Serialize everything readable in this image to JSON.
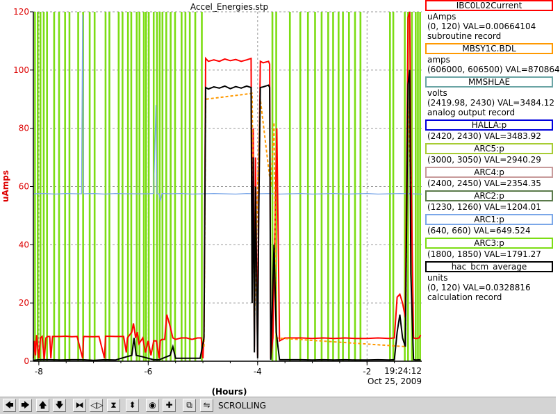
{
  "chart_data": {
    "type": "line",
    "title": "Accel_Energies.stp",
    "xlabel": "(Hours)",
    "ylabel": "uAmps",
    "xlim": [
      -8.1,
      -1.0
    ],
    "ylim": [
      0,
      120
    ],
    "x_ticks": [
      -8,
      -6,
      -4,
      -2
    ],
    "x_tick_labels": [
      "-8",
      "-6",
      "-4",
      "-2"
    ],
    "y_ticks": [
      0,
      20,
      40,
      60,
      80,
      100,
      120
    ],
    "y_tick_labels": [
      "0",
      "20",
      "40",
      "60",
      "80",
      "100",
      "120"
    ],
    "time_label": "19:24:12",
    "date_label": "Oct 25, 2009",
    "grid": true,
    "legend_position": "right",
    "series": [
      {
        "name": "IBC0L02Current",
        "color": "#ff0000",
        "points": [
          [
            -8.1,
            1
          ],
          [
            -8.08,
            7
          ],
          [
            -8.06,
            2
          ],
          [
            -8.04,
            9
          ],
          [
            -8.0,
            1
          ],
          [
            -7.97,
            8
          ],
          [
            -7.94,
            8.5
          ],
          [
            -7.9,
            0.5
          ],
          [
            -7.87,
            8
          ],
          [
            -7.84,
            8.5
          ],
          [
            -7.8,
            8.5
          ],
          [
            -7.78,
            1
          ],
          [
            -7.75,
            8.5
          ],
          [
            -7.6,
            8.5
          ],
          [
            -7.5,
            8.6
          ],
          [
            -7.4,
            8.4
          ],
          [
            -7.3,
            8.5
          ],
          [
            -7.2,
            1
          ],
          [
            -7.18,
            8.5
          ],
          [
            -7.0,
            8.4
          ],
          [
            -6.9,
            8.5
          ],
          [
            -6.8,
            1
          ],
          [
            -6.78,
            8.6
          ],
          [
            -6.6,
            8.5
          ],
          [
            -6.45,
            8.5
          ],
          [
            -6.4,
            3
          ],
          [
            -6.38,
            8
          ],
          [
            -6.3,
            10
          ],
          [
            -6.27,
            13
          ],
          [
            -6.23,
            8
          ],
          [
            -6.2,
            10
          ],
          [
            -6.17,
            6
          ],
          [
            -6.1,
            8
          ],
          [
            -6.05,
            3
          ],
          [
            -6.0,
            7
          ],
          [
            -5.95,
            2
          ],
          [
            -5.9,
            7
          ],
          [
            -5.85,
            7
          ],
          [
            -5.8,
            1
          ],
          [
            -5.78,
            7
          ],
          [
            -5.75,
            7.5
          ],
          [
            -5.7,
            7.5
          ],
          [
            -5.66,
            16
          ],
          [
            -5.6,
            12
          ],
          [
            -5.55,
            8
          ],
          [
            -5.5,
            7.5
          ],
          [
            -5.4,
            8
          ],
          [
            -5.3,
            8
          ],
          [
            -5.2,
            7.5
          ],
          [
            -5.1,
            8
          ],
          [
            -5.03,
            8
          ],
          [
            -5.0,
            1
          ],
          [
            -4.98,
            10
          ],
          [
            -4.95,
            104
          ],
          [
            -4.9,
            103
          ],
          [
            -4.8,
            103.5
          ],
          [
            -4.7,
            103
          ],
          [
            -4.6,
            103.8
          ],
          [
            -4.5,
            103.2
          ],
          [
            -4.4,
            103.6
          ],
          [
            -4.3,
            103
          ],
          [
            -4.2,
            103.5
          ],
          [
            -4.12,
            104
          ],
          [
            -4.1,
            30
          ],
          [
            -4.08,
            80
          ],
          [
            -4.06,
            5
          ],
          [
            -4.04,
            70
          ],
          [
            -4.0,
            2
          ],
          [
            -3.98,
            60
          ],
          [
            -3.95,
            103
          ],
          [
            -3.9,
            102.5
          ],
          [
            -3.8,
            103
          ],
          [
            -3.78,
            102
          ],
          [
            -3.76,
            1
          ],
          [
            -3.72,
            8
          ],
          [
            -3.65,
            80
          ],
          [
            -3.6,
            7
          ],
          [
            -3.5,
            8
          ],
          [
            -3.4,
            8
          ],
          [
            -3.2,
            8
          ],
          [
            -3.0,
            7.8
          ],
          [
            -2.8,
            8
          ],
          [
            -2.6,
            7.8
          ],
          [
            -2.4,
            8
          ],
          [
            -2.2,
            7.8
          ],
          [
            -2.0,
            7.8
          ],
          [
            -1.8,
            8
          ],
          [
            -1.6,
            7.8
          ],
          [
            -1.5,
            8
          ],
          [
            -1.45,
            22
          ],
          [
            -1.4,
            23
          ],
          [
            -1.35,
            20
          ],
          [
            -1.3,
            15
          ],
          [
            -1.25,
            118
          ],
          [
            -1.22,
            120
          ],
          [
            -1.2,
            70
          ],
          [
            -1.15,
            8
          ],
          [
            -1.1,
            7.8
          ],
          [
            -1.05,
            8
          ],
          [
            -1.02,
            9
          ]
        ]
      },
      {
        "name": "hac_bcm_average",
        "color": "#000000",
        "points": [
          [
            -8.1,
            0.3
          ],
          [
            -8.0,
            0.5
          ],
          [
            -7.8,
            0.5
          ],
          [
            -7.6,
            0.4
          ],
          [
            -7.4,
            0.5
          ],
          [
            -7.2,
            0.5
          ],
          [
            -7.0,
            0.3
          ],
          [
            -6.8,
            0.5
          ],
          [
            -6.6,
            0.4
          ],
          [
            -6.4,
            1.5
          ],
          [
            -6.3,
            2
          ],
          [
            -6.26,
            8
          ],
          [
            -6.22,
            2
          ],
          [
            -6.1,
            1.5
          ],
          [
            -6.0,
            1
          ],
          [
            -5.9,
            0.5
          ],
          [
            -5.8,
            0.5
          ],
          [
            -5.6,
            2
          ],
          [
            -5.55,
            5
          ],
          [
            -5.5,
            1
          ],
          [
            -5.4,
            1
          ],
          [
            -5.2,
            1
          ],
          [
            -5.05,
            1
          ],
          [
            -4.98,
            8
          ],
          [
            -4.95,
            94
          ],
          [
            -4.9,
            93.5
          ],
          [
            -4.8,
            94.2
          ],
          [
            -4.7,
            93.8
          ],
          [
            -4.6,
            94.5
          ],
          [
            -4.5,
            93.6
          ],
          [
            -4.4,
            94.3
          ],
          [
            -4.3,
            93.8
          ],
          [
            -4.2,
            94.5
          ],
          [
            -4.12,
            94
          ],
          [
            -4.1,
            20
          ],
          [
            -4.08,
            70
          ],
          [
            -4.06,
            3
          ],
          [
            -4.04,
            60
          ],
          [
            -4.0,
            1
          ],
          [
            -3.98,
            50
          ],
          [
            -3.95,
            94
          ],
          [
            -3.9,
            94.2
          ],
          [
            -3.8,
            94.8
          ],
          [
            -3.78,
            94
          ],
          [
            -3.76,
            0.5
          ],
          [
            -3.7,
            40
          ],
          [
            -3.66,
            10
          ],
          [
            -3.6,
            0.5
          ],
          [
            -3.4,
            0.5
          ],
          [
            -3.2,
            0.5
          ],
          [
            -3.0,
            0.4
          ],
          [
            -2.8,
            0.5
          ],
          [
            -2.6,
            0.4
          ],
          [
            -2.4,
            0.5
          ],
          [
            -2.2,
            0.4
          ],
          [
            -2.0,
            0.4
          ],
          [
            -1.8,
            0.5
          ],
          [
            -1.6,
            0.4
          ],
          [
            -1.5,
            0.5
          ],
          [
            -1.45,
            10
          ],
          [
            -1.4,
            16
          ],
          [
            -1.35,
            8
          ],
          [
            -1.3,
            5
          ],
          [
            -1.25,
            95
          ],
          [
            -1.22,
            100
          ],
          [
            -1.2,
            30
          ],
          [
            -1.15,
            0.5
          ],
          [
            -1.1,
            0.4
          ],
          [
            -1.05,
            0.5
          ],
          [
            -1.02,
            0.4
          ]
        ]
      },
      {
        "name": "MBSY1C.BDL",
        "color": "#ff9900",
        "points": [
          [
            -4.98,
            5
          ],
          [
            -4.95,
            90
          ],
          [
            -4.1,
            92
          ],
          [
            -4.06,
            10
          ],
          [
            -4.0,
            60
          ],
          [
            -3.95,
            90
          ],
          [
            -3.76,
            60
          ],
          [
            -3.7,
            82
          ],
          [
            -3.66,
            8
          ],
          [
            -1.3,
            5
          ],
          [
            -1.25,
            90
          ],
          [
            -1.2,
            60
          ]
        ]
      },
      {
        "name": "MMSHLAE",
        "color": "#7ba7e8",
        "points": [
          [
            -8.1,
            57.5
          ],
          [
            -7.9,
            57.6
          ],
          [
            -7.7,
            57.4
          ],
          [
            -7.5,
            57.6
          ],
          [
            -7.3,
            57.5
          ],
          [
            -7.22,
            57.5
          ],
          [
            -7.2,
            119
          ],
          [
            -7.18,
            57.5
          ],
          [
            -7.0,
            57.6
          ],
          [
            -6.8,
            57.4
          ],
          [
            -6.6,
            57.6
          ],
          [
            -6.4,
            57.5
          ],
          [
            -6.2,
            57.5
          ],
          [
            -6.0,
            57.5
          ],
          [
            -5.9,
            57.6
          ],
          [
            -5.86,
            88
          ],
          [
            -5.84,
            57.5
          ],
          [
            -5.8,
            57.5
          ],
          [
            -5.78,
            55
          ],
          [
            -5.75,
            57.6
          ],
          [
            -5.6,
            57.5
          ],
          [
            -5.4,
            57.6
          ],
          [
            -5.2,
            57.4
          ],
          [
            -5.0,
            57.5
          ],
          [
            -4.8,
            57.6
          ],
          [
            -4.6,
            57.5
          ],
          [
            -4.4,
            57.4
          ],
          [
            -4.2,
            57.6
          ],
          [
            -4.0,
            57.5
          ],
          [
            -3.8,
            57.6
          ],
          [
            -3.6,
            57.4
          ],
          [
            -3.4,
            57.5
          ],
          [
            -3.2,
            57.6
          ],
          [
            -3.0,
            57.4
          ],
          [
            -2.8,
            57.5
          ],
          [
            -2.6,
            57.6
          ],
          [
            -2.4,
            57.4
          ],
          [
            -2.2,
            57.5
          ],
          [
            -2.0,
            57.6
          ],
          [
            -1.8,
            57.4
          ],
          [
            -1.6,
            57.5
          ],
          [
            -1.4,
            57.6
          ],
          [
            -1.2,
            57.5
          ],
          [
            -1.0,
            57.4
          ]
        ]
      },
      {
        "name": "ARC5:p",
        "color": "#7cdd14",
        "spikes": [
          -8.07,
          -8.02,
          -7.97,
          -7.91,
          -7.85,
          -7.72,
          -7.63,
          -7.52,
          -7.44,
          -7.28,
          -7.19,
          -7.07,
          -6.98,
          -6.78,
          -6.71,
          -6.54,
          -6.47,
          -6.37,
          -6.31,
          -6.21,
          -6.16,
          -6.08,
          -6.04,
          -5.99,
          -5.9,
          -5.84,
          -5.79,
          -5.74,
          -5.67,
          -5.59,
          -5.51,
          -5.39,
          -5.32,
          -5.24,
          -5.14,
          -5.02,
          -3.73,
          -3.66,
          -3.41,
          -3.22,
          -3.08,
          -2.95,
          -2.83,
          -2.71,
          -2.62,
          -2.52,
          -2.44,
          -2.33,
          -2.22,
          -2.12,
          -1.58,
          -1.52,
          -1.31,
          -1.25,
          -1.18,
          -1.11,
          -1.07,
          -1.03
        ]
      }
    ]
  },
  "legend": [
    {
      "box": "IBC0L02Current",
      "color": "#ff0000",
      "lines": [
        "uAmps",
        "(0, 120) VAL=0.00664104",
        "subroutine record"
      ]
    },
    {
      "box": "MBSY1C.BDL",
      "color": "#ff9900",
      "lines": [
        "amps",
        "(606000, 606500) VAL=870864"
      ]
    },
    {
      "box": "MMSHLAE",
      "color": "#6aa4a4",
      "lines": [
        "volts",
        "(2419.98, 2430) VAL=3484.12",
        "analog output record"
      ]
    },
    {
      "box": "HALLA:p",
      "color": "#0000dd",
      "lines": [
        "(2420, 2430) VAL=3483.92"
      ]
    },
    {
      "box": "ARC5:p",
      "color": "#a7cc33",
      "lines": [
        "(3000, 3050) VAL=2940.29"
      ]
    },
    {
      "box": "ARC4:p",
      "color": "#c79a9a",
      "lines": [
        "(2400, 2450) VAL=2354.35"
      ]
    },
    {
      "box": "ARC2:p",
      "color": "#5a7a4a",
      "lines": [
        "(1230, 1260) VAL=1204.01"
      ]
    },
    {
      "box": "ARC1:p",
      "color": "#7ba7e8",
      "lines": [
        "(640, 660) VAL=649.524"
      ]
    },
    {
      "box": "ARC3:p",
      "color": "#7cdd14",
      "lines": [
        "(1800, 1850) VAL=1791.27"
      ]
    },
    {
      "box": "hac_bcm_average",
      "color": "#000000",
      "lines": [
        "units",
        "(0, 120) VAL=0.0328816",
        "calculation record"
      ]
    }
  ],
  "toolbar": {
    "buttons": [
      {
        "name": "scroll-left-button",
        "glyph": "🡄"
      },
      {
        "name": "scroll-right-button",
        "glyph": "🡆"
      },
      {
        "name": "scroll-up-button",
        "glyph": "🡅"
      },
      {
        "name": "scroll-down-button",
        "glyph": "🡇"
      },
      {
        "name": "zoom-in-x-button",
        "glyph": "⧓"
      },
      {
        "name": "zoom-out-x-button",
        "glyph": "◁▷"
      },
      {
        "name": "zoom-in-y-button",
        "glyph": "⧗"
      },
      {
        "name": "zoom-out-y-button",
        "glyph": "⬍"
      },
      {
        "name": "auto-scale-button",
        "glyph": "◉"
      },
      {
        "name": "add-button",
        "glyph": "✚"
      },
      {
        "name": "config-button",
        "glyph": "⧉"
      },
      {
        "name": "scroll-toggle-button",
        "glyph": "⇋"
      }
    ],
    "status": "SCROLLING"
  }
}
